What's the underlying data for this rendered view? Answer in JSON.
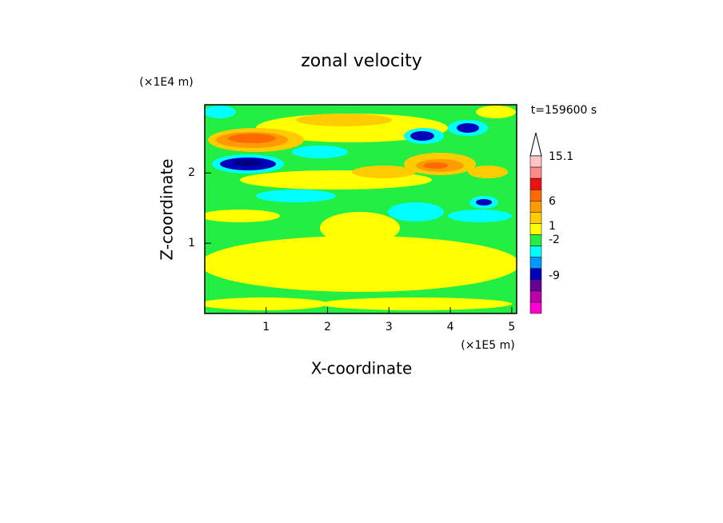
{
  "chart_data": {
    "type": "contour",
    "title": "zonal velocity",
    "x_label": "X-coordinate",
    "y_label": "Z-coordinate",
    "x_multiplier": "(×1E5 m)",
    "y_multiplier": "(×1E4 m)",
    "time_label": "t=159600 s",
    "xlim": [
      0,
      5.08
    ],
    "xticks": [
      1,
      2,
      3,
      4,
      5
    ],
    "ylim": [
      0,
      2.97
    ],
    "yticks": [
      1,
      2
    ],
    "colorbar_colors": [
      "#ffc4c4",
      "#ff8a8a",
      "#ee1010",
      "#ff6a00",
      "#ff9a00",
      "#ffcc00",
      "#ffff00",
      "#22ee44",
      "#00ffff",
      "#0099ff",
      "#0000bb",
      "#660099",
      "#bb00aa",
      "#ff00cc"
    ],
    "colorbar_ticks": [
      15.1,
      6,
      1,
      -2,
      -9
    ]
  }
}
